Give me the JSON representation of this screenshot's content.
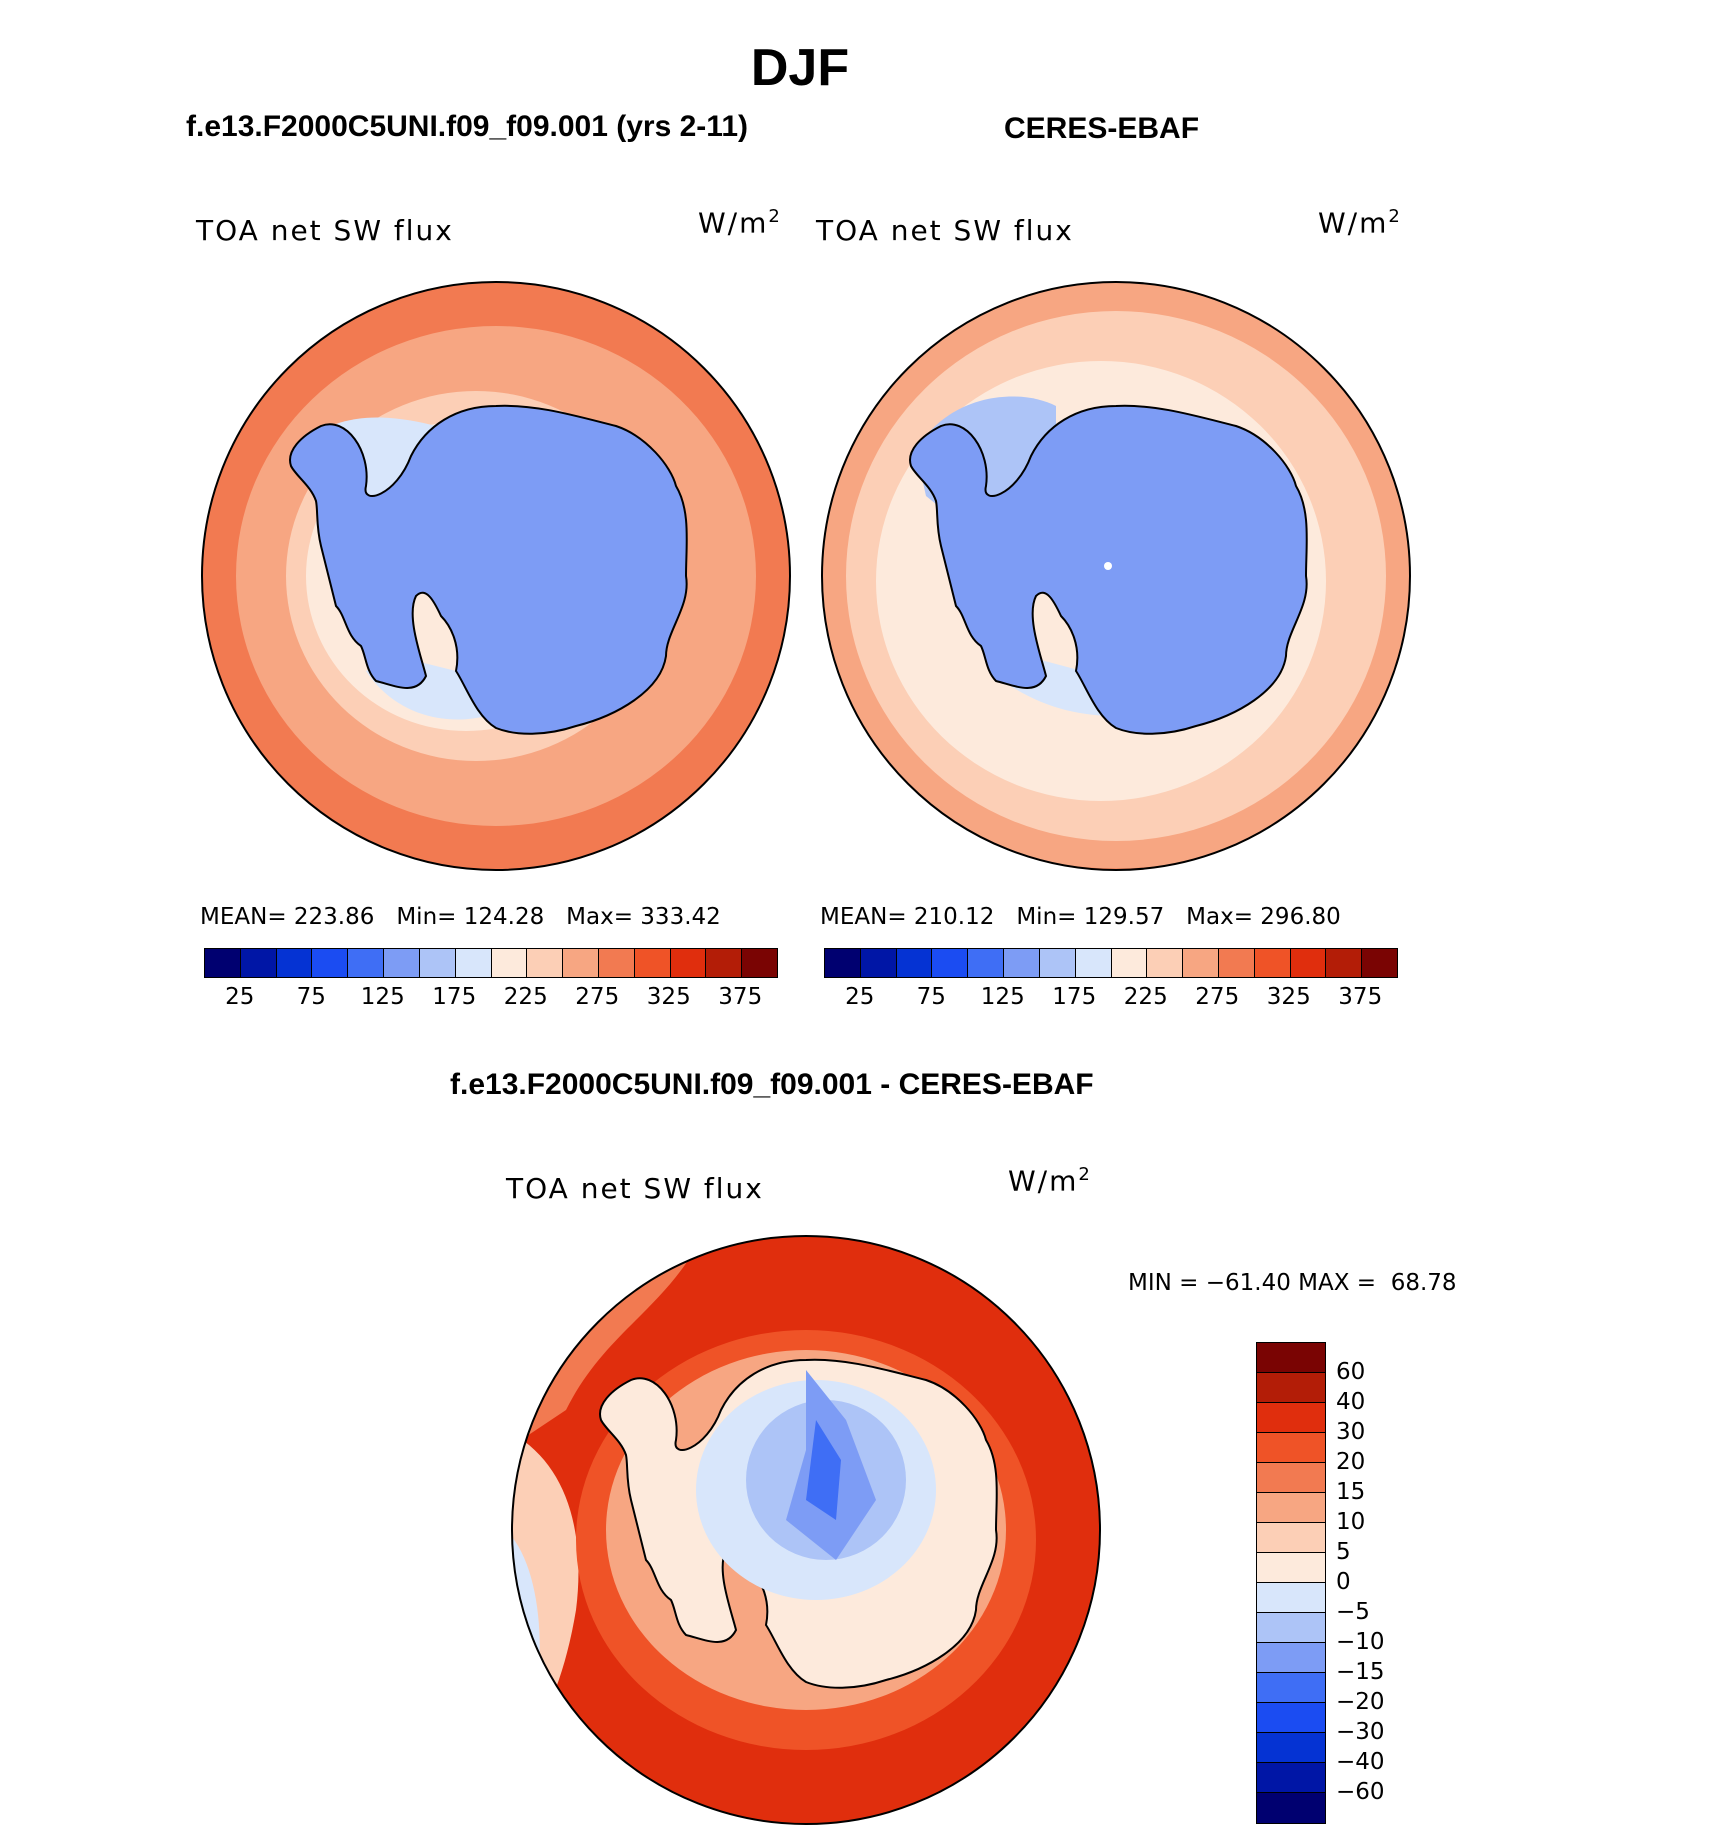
{
  "title": "DJF",
  "panels": [
    {
      "id": "model",
      "title": "f.e13.F2000C5UNI.f09_f09.001 (yrs 2-11)",
      "variable": "TOA net SW flux",
      "units_base": "W/m",
      "units_exp": "2",
      "stats": {
        "mean_label": "MEAN=",
        "mean": "223.86",
        "min_label": "Min=",
        "min": "124.28",
        "max_label": "Max=",
        "max": "333.42"
      }
    },
    {
      "id": "obs",
      "title": "CERES-EBAF",
      "variable": "TOA net SW flux",
      "units_base": "W/m",
      "units_exp": "2",
      "stats": {
        "mean_label": "MEAN=",
        "mean": "210.12",
        "min_label": "Min=",
        "min": "129.57",
        "max_label": "Max=",
        "max": "296.80"
      }
    }
  ],
  "diff_panel": {
    "title": "f.e13.F2000C5UNI.f09_f09.001 - CERES-EBAF",
    "variable": "TOA net SW flux",
    "units_base": "W/m",
    "units_exp": "2",
    "minmax": "MIN = −61.40 MAX =  68.78"
  },
  "colors": {
    "abs_scale": [
      "#000070",
      "#0016a6",
      "#0533d3",
      "#1b4cf2",
      "#3f6ef5",
      "#7d9cf5",
      "#adc4f7",
      "#d8e6fb",
      "#fdeadc",
      "#fccfb6",
      "#f7a682",
      "#f27a51",
      "#ef5327",
      "#e02e0d",
      "#b31d07",
      "#7a0403"
    ],
    "abs_ticks": [
      "25",
      "75",
      "125",
      "175",
      "225",
      "275",
      "325",
      "375"
    ],
    "diff_scale": [
      "#000070",
      "#0016a6",
      "#0533d3",
      "#1b4cf2",
      "#3f6ef5",
      "#7d9cf5",
      "#adc4f7",
      "#d8e6fb",
      "#fdeadc",
      "#fccfb6",
      "#f7a682",
      "#f27a51",
      "#ef5327",
      "#e02e0d",
      "#b31d07",
      "#7a0403"
    ],
    "diff_ticks": [
      "60",
      "40",
      "30",
      "20",
      "15",
      "10",
      "5",
      "0",
      "−5",
      "−10",
      "−15",
      "−20",
      "−30",
      "−40",
      "−60"
    ]
  },
  "chart_data": [
    {
      "type": "heatmap",
      "title": "f.e13.F2000C5UNI.f09_f09.001 (yrs 2-11)",
      "variable": "TOA net SW flux",
      "units": "W/m2",
      "projection": "south polar stereographic",
      "levels": [
        25,
        50,
        75,
        100,
        125,
        150,
        175,
        200,
        225,
        250,
        275,
        300,
        325,
        350,
        375
      ],
      "mean": 223.86,
      "min": 124.28,
      "max": 333.42
    },
    {
      "type": "heatmap",
      "title": "CERES-EBAF",
      "variable": "TOA net SW flux",
      "units": "W/m2",
      "projection": "south polar stereographic",
      "levels": [
        25,
        50,
        75,
        100,
        125,
        150,
        175,
        200,
        225,
        250,
        275,
        300,
        325,
        350,
        375
      ],
      "mean": 210.12,
      "min": 129.57,
      "max": 296.8
    },
    {
      "type": "heatmap",
      "title": "f.e13.F2000C5UNI.f09_f09.001 - CERES-EBAF",
      "variable": "TOA net SW flux",
      "units": "W/m2",
      "projection": "south polar stereographic",
      "levels": [
        -60,
        -40,
        -30,
        -20,
        -15,
        -10,
        -5,
        0,
        5,
        10,
        15,
        20,
        30,
        40,
        60
      ],
      "min": -61.4,
      "max": 68.78
    }
  ]
}
